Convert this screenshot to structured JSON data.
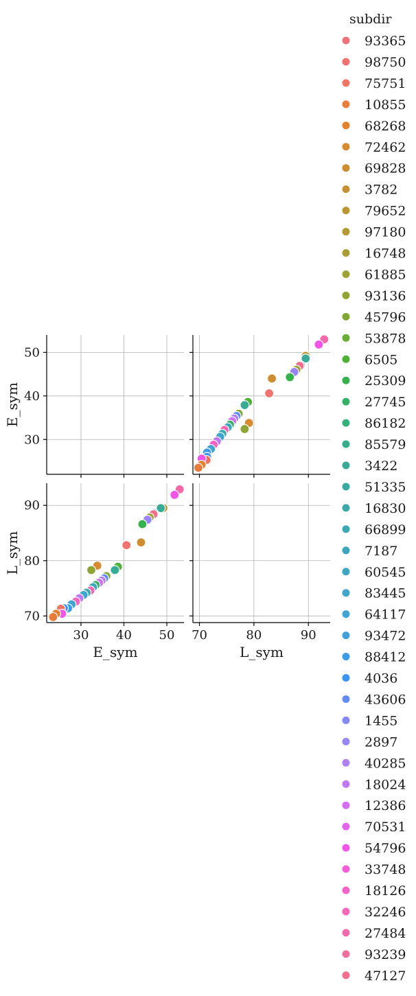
{
  "chart_data": {
    "type": "scatter",
    "kind": "pairplot",
    "variables": [
      "E_sym",
      "L_sym"
    ],
    "axis_labels": {
      "E_sym": "E_sym",
      "L_sym": "L_sym"
    },
    "ranges": {
      "E_sym": [
        22,
        54
      ],
      "L_sym": [
        68.8,
        94
      ]
    },
    "ticks": {
      "E_sym": [
        30,
        40,
        50
      ],
      "L_sym": [
        70,
        80,
        90
      ]
    },
    "grid": true,
    "diagonal": "empty",
    "legend": {
      "title": "subdir",
      "placement": "right",
      "entries": [
        {
          "label": "93365",
          "color": "#f0717a"
        },
        {
          "label": "98750",
          "color": "#f07370"
        },
        {
          "label": "75751",
          "color": "#ef7461"
        },
        {
          "label": "10855",
          "color": "#e87c3a"
        },
        {
          "label": "68268",
          "color": "#e2822e"
        },
        {
          "label": "72462",
          "color": "#d78a30"
        },
        {
          "label": "69828",
          "color": "#cf8d31"
        },
        {
          "label": "3782",
          "color": "#c69132"
        },
        {
          "label": "79652",
          "color": "#bb9632"
        },
        {
          "label": "97180",
          "color": "#b39a33"
        },
        {
          "label": "16748",
          "color": "#aa9d33"
        },
        {
          "label": "61885",
          "color": "#9ea133"
        },
        {
          "label": "93136",
          "color": "#90a533"
        },
        {
          "label": "45796",
          "color": "#7fa933"
        },
        {
          "label": "53878",
          "color": "#69ad34"
        },
        {
          "label": "6505",
          "color": "#4bb137"
        },
        {
          "label": "25309",
          "color": "#35b24b"
        },
        {
          "label": "27745",
          "color": "#35b165"
        },
        {
          "label": "86182",
          "color": "#36b07a"
        },
        {
          "label": "85579",
          "color": "#37ad8a"
        },
        {
          "label": "3422",
          "color": "#38ab97"
        },
        {
          "label": "51335",
          "color": "#39aaa2"
        },
        {
          "label": "16830",
          "color": "#3aa9ab"
        },
        {
          "label": "66899",
          "color": "#3ba8b3"
        },
        {
          "label": "7187",
          "color": "#3ca7bb"
        },
        {
          "label": "60545",
          "color": "#3da6c3"
        },
        {
          "label": "83445",
          "color": "#3ea5cb"
        },
        {
          "label": "64117",
          "color": "#3fa3d3"
        },
        {
          "label": "93472",
          "color": "#40a1dd"
        },
        {
          "label": "88412",
          "color": "#3d9ce8"
        },
        {
          "label": "4036",
          "color": "#3a95f2"
        },
        {
          "label": "43606",
          "color": "#628bf4"
        },
        {
          "label": "1455",
          "color": "#8288f5"
        },
        {
          "label": "2897",
          "color": "#9a85f5"
        },
        {
          "label": "40285",
          "color": "#ae80f4"
        },
        {
          "label": "18024",
          "color": "#bf79f3"
        },
        {
          "label": "12386",
          "color": "#d46ff2"
        },
        {
          "label": "70531",
          "color": "#e564ef"
        },
        {
          "label": "54796",
          "color": "#f155e7"
        },
        {
          "label": "33748",
          "color": "#f55ed6"
        },
        {
          "label": "18126",
          "color": "#f463c6"
        },
        {
          "label": "32246",
          "color": "#f367b8"
        },
        {
          "label": "27484",
          "color": "#f26aaa"
        },
        {
          "label": "93239",
          "color": "#f26c9c"
        },
        {
          "label": "47127",
          "color": "#f16e8d"
        }
      ]
    },
    "points": [
      {
        "E_sym": 53.0,
        "L_sym": 92.9,
        "color": "#f26aaa"
      },
      {
        "E_sym": 51.8,
        "L_sym": 91.9,
        "color": "#f155e7"
      },
      {
        "E_sym": 49.2,
        "L_sym": 89.5,
        "color": "#bb9632"
      },
      {
        "E_sym": 48.6,
        "L_sym": 89.5,
        "color": "#38ab97"
      },
      {
        "E_sym": 47.0,
        "L_sym": 88.6,
        "color": "#3fa3d3"
      },
      {
        "E_sym": 46.9,
        "L_sym": 88.4,
        "color": "#f16e8d"
      },
      {
        "E_sym": 46.0,
        "L_sym": 87.8,
        "color": "#9ea133"
      },
      {
        "E_sym": 45.5,
        "L_sym": 87.4,
        "color": "#9a85f5"
      },
      {
        "E_sym": 44.3,
        "L_sym": 86.6,
        "color": "#35b24b"
      },
      {
        "E_sym": 44.0,
        "L_sym": 83.3,
        "color": "#cf8d31"
      },
      {
        "E_sym": 40.6,
        "L_sym": 82.8,
        "color": "#f07370"
      },
      {
        "E_sym": 38.6,
        "L_sym": 78.9,
        "color": "#4bb137"
      },
      {
        "E_sym": 37.9,
        "L_sym": 78.3,
        "color": "#38ab97"
      },
      {
        "E_sym": 33.8,
        "L_sym": 79.1,
        "color": "#d78a30"
      },
      {
        "E_sym": 32.4,
        "L_sym": 78.3,
        "color": "#90a533"
      },
      {
        "E_sym": 35.9,
        "L_sym": 77.2,
        "color": "#7fa933"
      },
      {
        "E_sym": 35.4,
        "L_sym": 76.8,
        "color": "#628bf4"
      },
      {
        "E_sym": 34.8,
        "L_sym": 76.4,
        "color": "#ae80f4"
      },
      {
        "E_sym": 34.2,
        "L_sym": 76.0,
        "color": "#d46ff2"
      },
      {
        "E_sym": 33.4,
        "L_sym": 75.6,
        "color": "#35b165"
      },
      {
        "E_sym": 32.8,
        "L_sym": 75.2,
        "color": "#3ca7bb"
      },
      {
        "E_sym": 32.2,
        "L_sym": 74.6,
        "color": "#f367b8"
      },
      {
        "E_sym": 31.3,
        "L_sym": 74.2,
        "color": "#3ba8b3"
      },
      {
        "E_sym": 30.6,
        "L_sym": 73.8,
        "color": "#3ea5cb"
      },
      {
        "E_sym": 29.6,
        "L_sym": 73.2,
        "color": "#bf79f3"
      },
      {
        "E_sym": 28.8,
        "L_sym": 72.6,
        "color": "#f463c6"
      },
      {
        "E_sym": 27.8,
        "L_sym": 72.1,
        "color": "#3fa3d3"
      },
      {
        "E_sym": 27.0,
        "L_sym": 71.4,
        "color": "#3d9ce8"
      },
      {
        "E_sym": 26.0,
        "L_sym": 71.4,
        "color": "#3a95f2"
      },
      {
        "E_sym": 25.3,
        "L_sym": 71.3,
        "color": "#ef7461"
      },
      {
        "E_sym": 25.6,
        "L_sym": 70.4,
        "color": "#f155e7"
      },
      {
        "E_sym": 24.2,
        "L_sym": 70.4,
        "color": "#e2822e"
      },
      {
        "E_sym": 23.5,
        "L_sym": 69.8,
        "color": "#e87c3a"
      }
    ]
  }
}
